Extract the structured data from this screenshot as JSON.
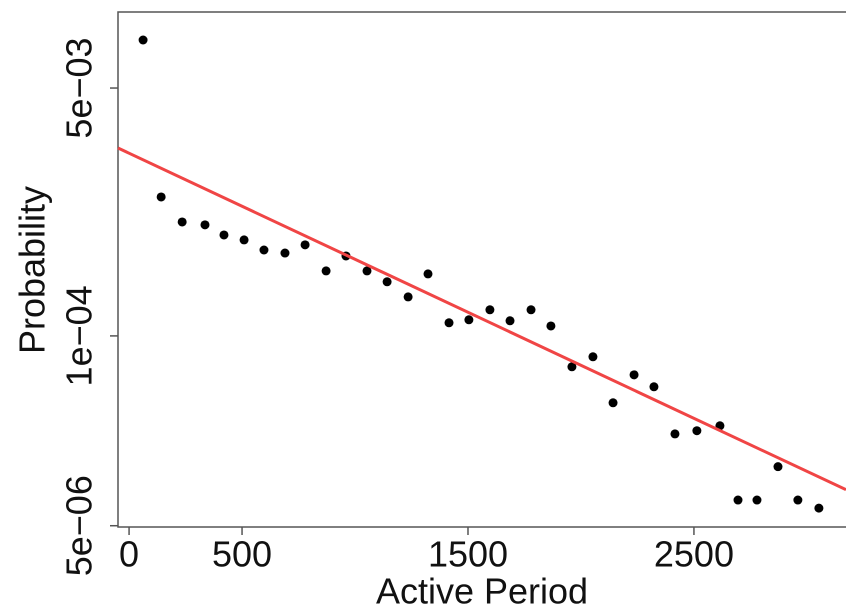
{
  "chart_data": {
    "type": "scatter",
    "x_label": "Active Period",
    "y_label": "Probability",
    "xlim": [
      -49,
      3173
    ],
    "ylim": [
      4.9e-06,
      0.0166
    ],
    "y_log": true,
    "xticks": [
      0,
      500,
      1500,
      2500
    ],
    "yticks": [
      {
        "value": 0.005,
        "label": "5e−03"
      },
      {
        "value": 0.0001,
        "label": "1e−04"
      },
      {
        "value": 5e-06,
        "label": "5e−06"
      }
    ],
    "series": [
      {
        "type": "scatter",
        "color": "#000000",
        "x": [
          62,
          142,
          235,
          336,
          420,
          509,
          597,
          690,
          779,
          872,
          960,
          1053,
          1142,
          1235,
          1323,
          1416,
          1504,
          1597,
          1686,
          1779,
          1867,
          1960,
          2053,
          2142,
          2235,
          2323,
          2416,
          2513,
          2615,
          2695,
          2779,
          2872,
          2960,
          3053
        ],
        "values": [
          0.01067,
          0.000896,
          0.000604,
          0.000577,
          0.000492,
          0.000455,
          0.000388,
          0.00037,
          0.000421,
          0.000279,
          0.000353,
          0.000279,
          0.000235,
          0.000185,
          0.000266,
          0.000123,
          0.000129,
          0.000151,
          0.000127,
          0.000151,
          0.000117,
          6.14e-05,
          7.19e-05,
          3.48e-05,
          5.41e-05,
          4.48e-05,
          2.13e-05,
          2.24e-05,
          2.42e-05,
          7.5e-06,
          7.5e-06,
          1.27e-05,
          7.5e-06,
          6.6e-06
        ]
      },
      {
        "type": "line",
        "color": "#f04545",
        "x": [
          -49,
          3173
        ],
        "values": [
          0.00194,
          8.83e-06
        ]
      }
    ]
  }
}
